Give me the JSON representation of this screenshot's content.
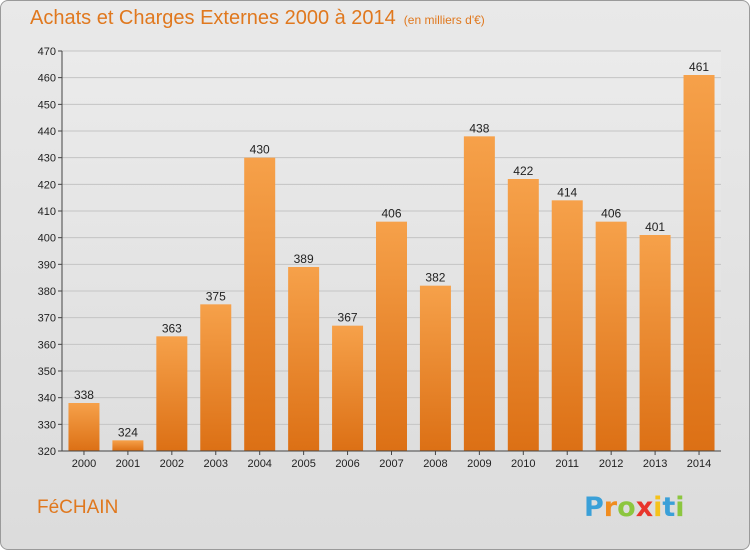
{
  "title": "Achats et Charges Externes 2000 à 2014",
  "subtitle": "(en milliers d'€)",
  "commune": "FéCHAIN",
  "logo": {
    "letters": [
      "P",
      "r",
      "o",
      "x",
      "i",
      "t",
      "i"
    ],
    "colors": [
      "#3aa0d8",
      "#f08c1e",
      "#8cc63f",
      "#e8352c",
      "#f5c21b",
      "#3aa0d8",
      "#8cc63f"
    ]
  },
  "colors": {
    "bar": "#f08a2c",
    "title": "#e0781e",
    "background": "#e3e3e3"
  },
  "chart_data": {
    "type": "bar",
    "title": "Achats et Charges Externes 2000 à 2014",
    "subtitle": "(en milliers d'€)",
    "categories": [
      "2000",
      "2001",
      "2002",
      "2003",
      "2004",
      "2005",
      "2006",
      "2007",
      "2008",
      "2009",
      "2010",
      "2011",
      "2012",
      "2013",
      "2014"
    ],
    "values": [
      338,
      324,
      363,
      375,
      430,
      389,
      367,
      406,
      382,
      438,
      422,
      414,
      406,
      401,
      461
    ],
    "ylim": [
      320,
      470
    ],
    "yticks": [
      320,
      330,
      340,
      350,
      360,
      370,
      380,
      390,
      400,
      410,
      420,
      430,
      440,
      450,
      460,
      470
    ],
    "grid": true,
    "data_labels": true
  }
}
